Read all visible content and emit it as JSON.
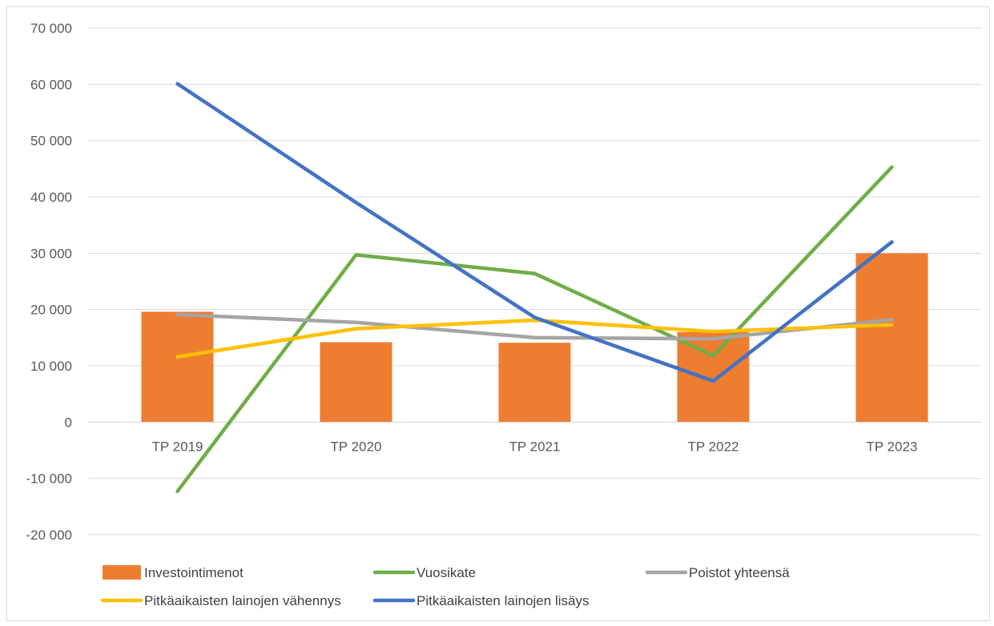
{
  "chart_data": {
    "type": "bar",
    "categories": [
      "TP 2019",
      "TP 2020",
      "TP 2021",
      "TP 2022",
      "TP 2023"
    ],
    "ylim": [
      -20000,
      70000
    ],
    "yticks": [
      -20000,
      -10000,
      0,
      10000,
      20000,
      30000,
      40000,
      50000,
      60000,
      70000
    ],
    "ytick_labels": [
      "-20 000",
      "-10 000",
      "0",
      "10 000",
      "20 000",
      "30 000",
      "40 000",
      "50 000",
      "60 000",
      "70 000"
    ],
    "grid": true,
    "legend_position": "bottom",
    "series": [
      {
        "name": "Investointimenot",
        "kind": "bar",
        "color": "#ED7D31",
        "values": [
          19600,
          14200,
          14100,
          16000,
          30000
        ]
      },
      {
        "name": "Vuosikate",
        "kind": "line",
        "color": "#70AD47",
        "values": [
          -12300,
          29700,
          26400,
          11800,
          45300
        ]
      },
      {
        "name": "Poistot yhteensä",
        "kind": "line",
        "color": "#A5A5A5",
        "values": [
          19100,
          17700,
          15000,
          14800,
          18200
        ]
      },
      {
        "name": "Pitkäaikaisten lainojen vähennys",
        "kind": "line",
        "color": "#FFC000",
        "values": [
          11600,
          16600,
          18100,
          16100,
          17300
        ]
      },
      {
        "name": "Pitkäaikaisten lainojen lisäys",
        "kind": "line",
        "color": "#4472C4",
        "values": [
          60100,
          39000,
          18600,
          7300,
          32000
        ]
      }
    ]
  }
}
